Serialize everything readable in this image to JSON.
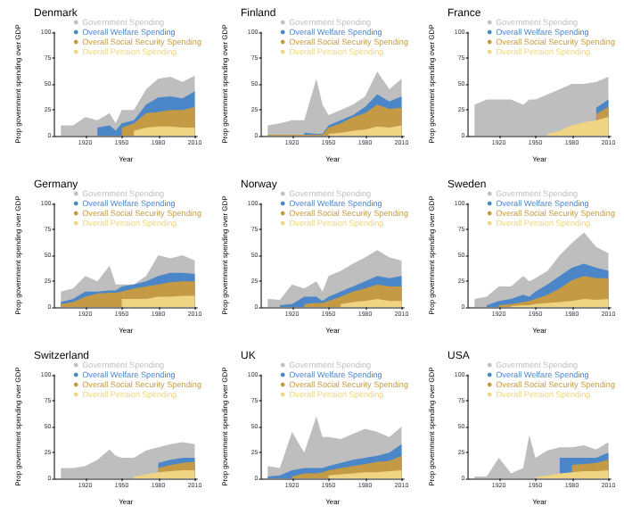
{
  "chart_data": [
    {
      "type": "area",
      "title": "Denmark",
      "xlabel": "Year",
      "ylabel": "Prop government spending over GDP",
      "legend": "top right",
      "xlim": [
        1895,
        2012
      ],
      "ylim": [
        0,
        100
      ],
      "xticks": [
        1920,
        1950,
        1980,
        2010
      ],
      "yticks": [
        0,
        25,
        50,
        75,
        100
      ],
      "x": [
        1900,
        1910,
        1920,
        1930,
        1940,
        1945,
        1950,
        1960,
        1970,
        1980,
        1990,
        2000,
        2010
      ],
      "series": [
        {
          "name": "Government Spending",
          "color": "#bebebe",
          "values": [
            10,
            10,
            18,
            15,
            22,
            12,
            25,
            25,
            45,
            55,
            57,
            52,
            58
          ]
        },
        {
          "name": "Overall Welfare Spending",
          "color": "#4a86c8",
          "values": [
            null,
            null,
            null,
            8,
            10,
            5,
            12,
            15,
            30,
            37,
            38,
            36,
            43
          ]
        },
        {
          "name": "Overall Social Security Spending",
          "color": "#c49a45",
          "values": [
            null,
            null,
            null,
            null,
            null,
            null,
            8,
            12,
            22,
            23,
            25,
            25,
            28
          ]
        },
        {
          "name": "Overall Pension Spending",
          "color": "#eed483",
          "values": [
            null,
            null,
            null,
            null,
            null,
            null,
            null,
            5,
            8,
            9,
            9,
            8,
            8
          ]
        }
      ]
    },
    {
      "type": "area",
      "title": "Finland",
      "xlabel": "Year",
      "ylabel": "Prop government spending over GDP",
      "legend": "top right",
      "xlim": [
        1895,
        2012
      ],
      "ylim": [
        0,
        100
      ],
      "xticks": [
        1920,
        1950,
        1980,
        2010
      ],
      "yticks": [
        0,
        25,
        50,
        75,
        100
      ],
      "x": [
        1900,
        1910,
        1920,
        1930,
        1940,
        1945,
        1950,
        1960,
        1970,
        1980,
        1990,
        2000,
        2010
      ],
      "series": [
        {
          "name": "Government Spending",
          "color": "#bebebe",
          "values": [
            10,
            12,
            15,
            15,
            55,
            30,
            20,
            25,
            30,
            38,
            62,
            45,
            55
          ]
        },
        {
          "name": "Overall Welfare Spending",
          "color": "#4a86c8",
          "values": [
            null,
            null,
            null,
            3,
            2,
            2,
            10,
            15,
            20,
            28,
            40,
            33,
            38
          ]
        },
        {
          "name": "Overall Social Security Spending",
          "color": "#c49a45",
          "values": [
            1,
            1,
            1,
            1,
            1,
            1,
            8,
            12,
            18,
            22,
            30,
            26,
            27
          ]
        },
        {
          "name": "Overall Pension Spending",
          "color": "#eed483",
          "values": [
            null,
            null,
            null,
            null,
            null,
            null,
            2,
            3,
            5,
            6,
            9,
            8,
            10
          ]
        }
      ]
    },
    {
      "type": "area",
      "title": "France",
      "xlabel": "Year",
      "ylabel": "Prop government spending over GDP",
      "legend": "top right",
      "xlim": [
        1895,
        2012
      ],
      "ylim": [
        0,
        100
      ],
      "xticks": [
        1920,
        1950,
        1980,
        2010
      ],
      "yticks": [
        0,
        25,
        50,
        75,
        100
      ],
      "x": [
        1900,
        1910,
        1920,
        1930,
        1940,
        1945,
        1950,
        1960,
        1970,
        1980,
        1990,
        2000,
        2010
      ],
      "series": [
        {
          "name": "Government Spending",
          "color": "#bebebe",
          "values": [
            30,
            35,
            35,
            35,
            30,
            35,
            35,
            40,
            45,
            50,
            50,
            52,
            57
          ]
        },
        {
          "name": "Overall Welfare Spending",
          "color": "#4a86c8",
          "values": [
            null,
            null,
            null,
            null,
            null,
            null,
            null,
            null,
            null,
            null,
            null,
            27,
            35
          ]
        },
        {
          "name": "Overall Social Security Spending",
          "color": "#c49a45",
          "values": [
            null,
            null,
            null,
            null,
            null,
            null,
            null,
            null,
            null,
            null,
            null,
            21,
            28
          ]
        },
        {
          "name": "Overall Pension Spending",
          "color": "#eed483",
          "values": [
            null,
            null,
            null,
            null,
            null,
            null,
            null,
            2,
            5,
            10,
            13,
            15,
            18
          ]
        }
      ]
    },
    {
      "type": "area",
      "title": "Germany",
      "xlabel": "Year",
      "ylabel": "Prop government spending over GDP",
      "legend": "top right",
      "xlim": [
        1895,
        2012
      ],
      "ylim": [
        0,
        100
      ],
      "xticks": [
        1920,
        1950,
        1980,
        2010
      ],
      "yticks": [
        0,
        25,
        50,
        75,
        100
      ],
      "x": [
        1900,
        1910,
        1920,
        1930,
        1940,
        1945,
        1950,
        1960,
        1970,
        1980,
        1990,
        2000,
        2010
      ],
      "series": [
        {
          "name": "Government Spending",
          "color": "#bebebe",
          "values": [
            15,
            18,
            30,
            25,
            40,
            22,
            22,
            22,
            30,
            50,
            47,
            50,
            45
          ]
        },
        {
          "name": "Overall Welfare Spending",
          "color": "#4a86c8",
          "values": [
            5,
            8,
            15,
            15,
            16,
            16,
            20,
            22,
            25,
            30,
            33,
            33,
            32
          ]
        },
        {
          "name": "Overall Social Security Spending",
          "color": "#c49a45",
          "values": [
            3,
            5,
            10,
            13,
            14,
            14,
            15,
            18,
            20,
            22,
            24,
            25,
            25
          ]
        },
        {
          "name": "Overall Pension Spending",
          "color": "#eed483",
          "values": [
            null,
            null,
            null,
            null,
            null,
            null,
            8,
            8,
            8,
            10,
            10,
            11,
            11
          ]
        }
      ]
    },
    {
      "type": "area",
      "title": "Norway",
      "xlabel": "Year",
      "ylabel": "Prop government spending over GDP",
      "legend": "top right",
      "xlim": [
        1895,
        2012
      ],
      "ylim": [
        0,
        100
      ],
      "xticks": [
        1920,
        1950,
        1980,
        2010
      ],
      "yticks": [
        0,
        25,
        50,
        75,
        100
      ],
      "x": [
        1900,
        1910,
        1920,
        1930,
        1940,
        1945,
        1950,
        1960,
        1970,
        1980,
        1990,
        2000,
        2010
      ],
      "series": [
        {
          "name": "Government Spending",
          "color": "#bebebe",
          "values": [
            8,
            7,
            22,
            18,
            25,
            15,
            30,
            35,
            42,
            48,
            55,
            48,
            45
          ]
        },
        {
          "name": "Overall Welfare Spending",
          "color": "#4a86c8",
          "values": [
            null,
            2,
            3,
            10,
            10,
            6,
            10,
            15,
            20,
            25,
            30,
            28,
            30
          ]
        },
        {
          "name": "Overall Social Security Spending",
          "color": "#c49a45",
          "values": [
            null,
            null,
            null,
            3,
            4,
            4,
            6,
            10,
            15,
            18,
            22,
            20,
            20
          ]
        },
        {
          "name": "Overall Pension Spending",
          "color": "#eed483",
          "values": [
            null,
            null,
            null,
            null,
            null,
            null,
            null,
            3,
            5,
            6,
            8,
            6,
            6
          ]
        }
      ]
    },
    {
      "type": "area",
      "title": "Sweden",
      "xlabel": "Year",
      "ylabel": "Prop government spending over GDP",
      "legend": "top right",
      "xlim": [
        1895,
        2012
      ],
      "ylim": [
        0,
        100
      ],
      "xticks": [
        1920,
        1950,
        1980,
        2010
      ],
      "yticks": [
        0,
        25,
        50,
        75,
        100
      ],
      "x": [
        1900,
        1910,
        1920,
        1930,
        1940,
        1945,
        1950,
        1960,
        1970,
        1980,
        1990,
        2000,
        2010
      ],
      "series": [
        {
          "name": "Government Spending",
          "color": "#bebebe",
          "values": [
            8,
            10,
            20,
            20,
            30,
            25,
            28,
            35,
            50,
            62,
            72,
            58,
            52
          ]
        },
        {
          "name": "Overall Welfare Spending",
          "color": "#4a86c8",
          "values": [
            null,
            2,
            6,
            8,
            12,
            10,
            15,
            22,
            30,
            38,
            42,
            38,
            35
          ]
        },
        {
          "name": "Overall Social Security Spending",
          "color": "#c49a45",
          "values": [
            null,
            null,
            2,
            3,
            5,
            6,
            8,
            12,
            18,
            26,
            30,
            28,
            28
          ]
        },
        {
          "name": "Overall Pension Spending",
          "color": "#eed483",
          "values": [
            null,
            null,
            null,
            1,
            2,
            2,
            3,
            4,
            5,
            6,
            8,
            7,
            8
          ]
        }
      ]
    },
    {
      "type": "area",
      "title": "Switzerland",
      "xlabel": "Year",
      "ylabel": "Prop government spending over GDP",
      "legend": "top right",
      "xlim": [
        1895,
        2012
      ],
      "ylim": [
        0,
        100
      ],
      "xticks": [
        1920,
        1950,
        1980,
        2010
      ],
      "yticks": [
        0,
        25,
        50,
        75,
        100
      ],
      "x": [
        1900,
        1910,
        1920,
        1930,
        1940,
        1945,
        1950,
        1960,
        1970,
        1980,
        1990,
        2000,
        2010
      ],
      "series": [
        {
          "name": "Government Spending",
          "color": "#bebebe",
          "values": [
            10,
            10,
            12,
            18,
            28,
            22,
            20,
            20,
            27,
            30,
            33,
            35,
            33
          ]
        },
        {
          "name": "Overall Welfare Spending",
          "color": "#4a86c8",
          "values": [
            null,
            null,
            null,
            null,
            null,
            null,
            null,
            null,
            null,
            15,
            18,
            20,
            20
          ]
        },
        {
          "name": "Overall Social Security Spending",
          "color": "#c49a45",
          "values": [
            null,
            null,
            null,
            null,
            null,
            null,
            null,
            null,
            null,
            10,
            13,
            15,
            16
          ]
        },
        {
          "name": "Overall Pension Spending",
          "color": "#eed483",
          "values": [
            null,
            null,
            null,
            null,
            null,
            null,
            null,
            2,
            4,
            6,
            7,
            8,
            8
          ]
        }
      ]
    },
    {
      "type": "area",
      "title": "UK",
      "xlabel": "Year",
      "ylabel": "Prop government spending over GDP",
      "legend": "top right",
      "xlim": [
        1895,
        2012
      ],
      "ylim": [
        0,
        100
      ],
      "xticks": [
        1920,
        1950,
        1980,
        2010
      ],
      "yticks": [
        0,
        25,
        50,
        75,
        100
      ],
      "x": [
        1900,
        1910,
        1920,
        1930,
        1940,
        1945,
        1950,
        1960,
        1970,
        1980,
        1990,
        2000,
        2010
      ],
      "series": [
        {
          "name": "Government Spending",
          "color": "#bebebe",
          "values": [
            12,
            10,
            45,
            25,
            60,
            40,
            40,
            38,
            43,
            48,
            45,
            40,
            50
          ]
        },
        {
          "name": "Overall Welfare Spending",
          "color": "#4a86c8",
          "values": [
            2,
            3,
            8,
            10,
            10,
            10,
            12,
            15,
            18,
            20,
            22,
            25,
            33
          ]
        },
        {
          "name": "Overall Social Security Spending",
          "color": "#c49a45",
          "values": [
            null,
            null,
            2,
            5,
            5,
            6,
            8,
            10,
            12,
            14,
            16,
            17,
            22
          ]
        },
        {
          "name": "Overall Pension Spending",
          "color": "#eed483",
          "values": [
            null,
            null,
            null,
            null,
            null,
            null,
            3,
            4,
            5,
            6,
            6,
            7,
            8
          ]
        }
      ]
    },
    {
      "type": "area",
      "title": "USA",
      "xlabel": "Year",
      "ylabel": "Prop government spending over GDP",
      "legend": "top right",
      "xlim": [
        1895,
        2012
      ],
      "ylim": [
        0,
        100
      ],
      "xticks": [
        1920,
        1950,
        1980,
        2010
      ],
      "yticks": [
        0,
        25,
        50,
        75,
        100
      ],
      "x": [
        1900,
        1910,
        1920,
        1930,
        1940,
        1945,
        1950,
        1960,
        1970,
        1980,
        1990,
        2000,
        2010
      ],
      "series": [
        {
          "name": "Government Spending",
          "color": "#bebebe",
          "values": [
            2,
            2,
            20,
            5,
            10,
            42,
            20,
            27,
            30,
            30,
            32,
            28,
            35
          ]
        },
        {
          "name": "Overall Welfare Spending",
          "color": "#4a86c8",
          "values": [
            null,
            null,
            null,
            null,
            null,
            null,
            null,
            null,
            20,
            20,
            20,
            20,
            25
          ]
        },
        {
          "name": "Overall Social Security Spending",
          "color": "#c49a45",
          "values": [
            null,
            null,
            null,
            null,
            null,
            null,
            null,
            null,
            null,
            13,
            14,
            15,
            18
          ]
        },
        {
          "name": "Overall Pension Spending",
          "color": "#eed483",
          "values": [
            null,
            null,
            null,
            null,
            null,
            null,
            1,
            3,
            5,
            6,
            7,
            7,
            8
          ]
        }
      ]
    }
  ]
}
